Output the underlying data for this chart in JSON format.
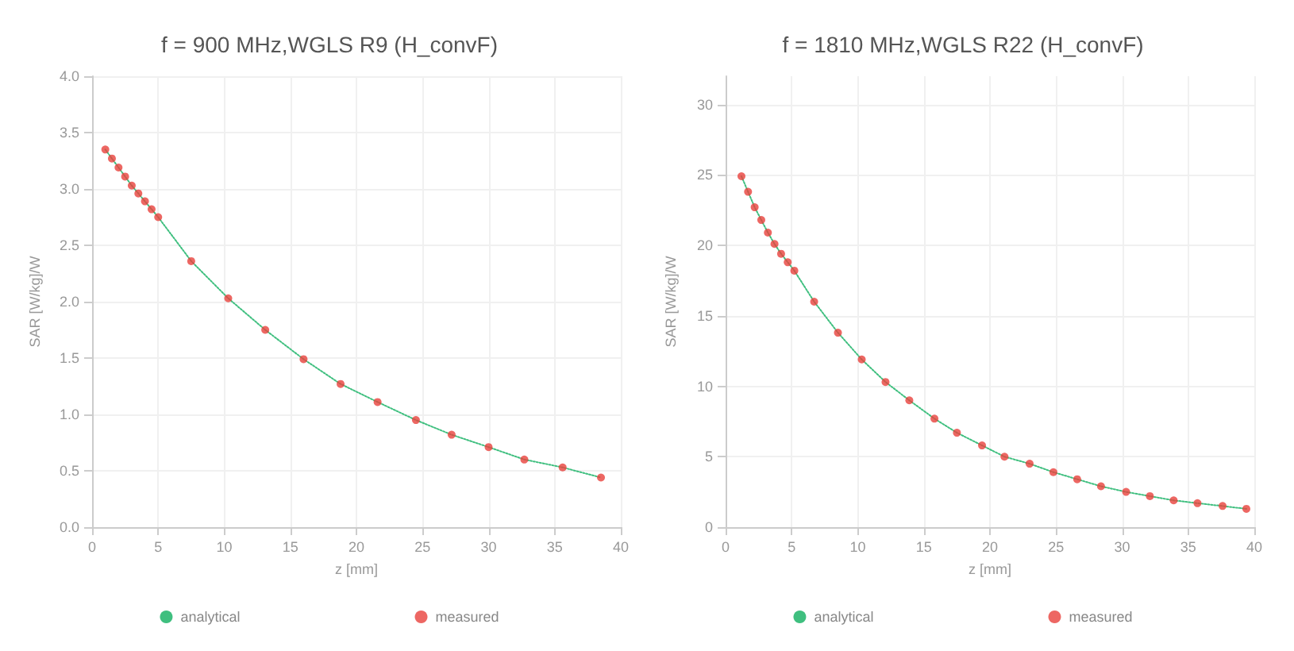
{
  "chart_data": [
    {
      "type": "scatter",
      "title": "f = 900 MHz,WGLS R9 (H_convF)",
      "xlabel": "z [mm]",
      "ylabel": "SAR [W/kg]/W",
      "xlim": [
        0,
        40
      ],
      "xticks": [
        0,
        5,
        10,
        15,
        20,
        25,
        30,
        35,
        40
      ],
      "ylim": [
        0,
        4
      ],
      "yticks": [
        {
          "value": 0,
          "label": "0.0"
        },
        {
          "value": 0.5,
          "label": "0.5"
        },
        {
          "value": 1,
          "label": "1.0"
        },
        {
          "value": 1.5,
          "label": "1.5"
        },
        {
          "value": 2,
          "label": "2.0"
        },
        {
          "value": 2.5,
          "label": "2.5"
        },
        {
          "value": 3,
          "label": "3.0"
        },
        {
          "value": 3.5,
          "label": "3.5"
        },
        {
          "value": 4,
          "label": "4.0"
        }
      ],
      "grid": true,
      "legend": "bottom",
      "series": [
        {
          "name": "analytical",
          "type": "line",
          "color": "#3fbf7f",
          "marker": "none",
          "line_style": "dotted",
          "x": [
            1,
            1.5,
            2,
            2.5,
            3,
            3.5,
            4,
            4.5,
            5,
            7.5,
            10.3,
            13.1,
            16,
            18.8,
            21.6,
            24.5,
            27.2,
            30,
            32.7,
            35.6,
            38.5
          ],
          "values": [
            3.35,
            3.27,
            3.19,
            3.11,
            3.03,
            2.96,
            2.89,
            2.82,
            2.75,
            2.36,
            2.03,
            1.75,
            1.49,
            1.27,
            1.11,
            0.95,
            0.82,
            0.71,
            0.6,
            0.53,
            0.44
          ]
        },
        {
          "name": "measured",
          "color": "#e8413c",
          "marker": "circle",
          "x": [
            1,
            1.5,
            2,
            2.5,
            3,
            3.5,
            4,
            4.5,
            5,
            7.5,
            10.3,
            13.1,
            16,
            18.8,
            21.6,
            24.5,
            27.2,
            30,
            32.7,
            35.6,
            38.5
          ],
          "values": [
            3.35,
            3.27,
            3.19,
            3.11,
            3.03,
            2.96,
            2.89,
            2.82,
            2.75,
            2.36,
            2.03,
            1.75,
            1.49,
            1.27,
            1.11,
            0.95,
            0.82,
            0.71,
            0.6,
            0.53,
            0.44
          ]
        }
      ]
    },
    {
      "type": "scatter",
      "title": "f = 1810 MHz,WGLS R22 (H_convF)",
      "xlabel": "z [mm]",
      "ylabel": "SAR [W/kg]/W",
      "xlim": [
        0,
        40
      ],
      "xticks": [
        0,
        5,
        10,
        15,
        20,
        25,
        30,
        35,
        40
      ],
      "ylim": [
        0,
        32
      ],
      "yticks": [
        0,
        5,
        10,
        15,
        20,
        25,
        30
      ],
      "grid": true,
      "legend": "bottom",
      "series": [
        {
          "name": "analytical",
          "type": "line",
          "color": "#3fbf7f",
          "marker": "none",
          "line_style": "dotted",
          "x": [
            1.2,
            1.7,
            2.2,
            2.7,
            3.2,
            3.7,
            4.2,
            4.7,
            5.2,
            6.7,
            8.5,
            10.3,
            12.1,
            13.9,
            15.8,
            17.5,
            19.4,
            21.1,
            23,
            24.8,
            26.6,
            28.4,
            30.3,
            32.1,
            33.9,
            35.7,
            37.6,
            39.4
          ],
          "values": [
            24.9,
            23.8,
            22.7,
            21.8,
            20.9,
            20.1,
            19.4,
            18.8,
            18.2,
            16,
            13.8,
            11.9,
            10.3,
            9,
            7.7,
            6.7,
            5.8,
            5,
            4.5,
            3.9,
            3.4,
            2.9,
            2.5,
            2.2,
            1.9,
            1.7,
            1.5,
            1.3
          ]
        },
        {
          "name": "measured",
          "color": "#e8413c",
          "marker": "circle",
          "x": [
            1.2,
            1.7,
            2.2,
            2.7,
            3.2,
            3.7,
            4.2,
            4.7,
            5.2,
            6.7,
            8.5,
            10.3,
            12.1,
            13.9,
            15.8,
            17.5,
            19.4,
            21.1,
            23,
            24.8,
            26.6,
            28.4,
            30.3,
            32.1,
            33.9,
            35.7,
            37.6,
            39.4
          ],
          "values": [
            24.9,
            23.8,
            22.7,
            21.8,
            20.9,
            20.1,
            19.4,
            18.8,
            18.2,
            16,
            13.8,
            11.9,
            10.3,
            9,
            7.7,
            6.7,
            5.8,
            5,
            4.5,
            3.9,
            3.4,
            2.9,
            2.5,
            2.2,
            1.9,
            1.7,
            1.5,
            1.3
          ]
        }
      ]
    }
  ]
}
